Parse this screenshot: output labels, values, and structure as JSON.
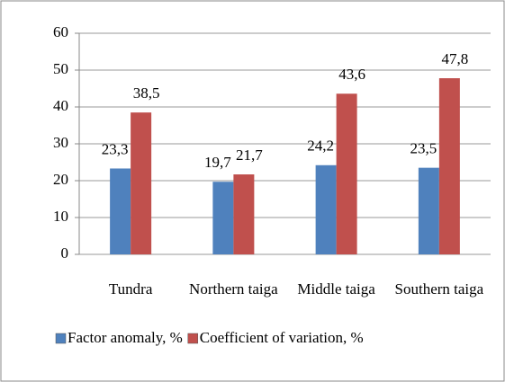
{
  "chart_data": {
    "type": "bar",
    "categories": [
      "Tundra",
      "Northern taiga",
      "Middle taiga",
      "Southern taiga"
    ],
    "series": [
      {
        "name": "Factor anomaly, %",
        "color": "#4f81bd",
        "values": [
          23.3,
          19.7,
          24.2,
          23.5
        ],
        "value_labels": [
          "23,3",
          "19,7",
          "24,2",
          "23,5"
        ]
      },
      {
        "name": "Coefficient of variation, %",
        "color": "#c0504d",
        "values": [
          38.5,
          21.7,
          43.6,
          47.8
        ],
        "value_labels": [
          "38,5",
          "21,7",
          "43,6",
          "47,8"
        ]
      }
    ],
    "ylim": [
      0,
      60
    ],
    "yticks": [
      0,
      10,
      20,
      30,
      40,
      50,
      60
    ],
    "grid": true,
    "legend": "bottom"
  }
}
